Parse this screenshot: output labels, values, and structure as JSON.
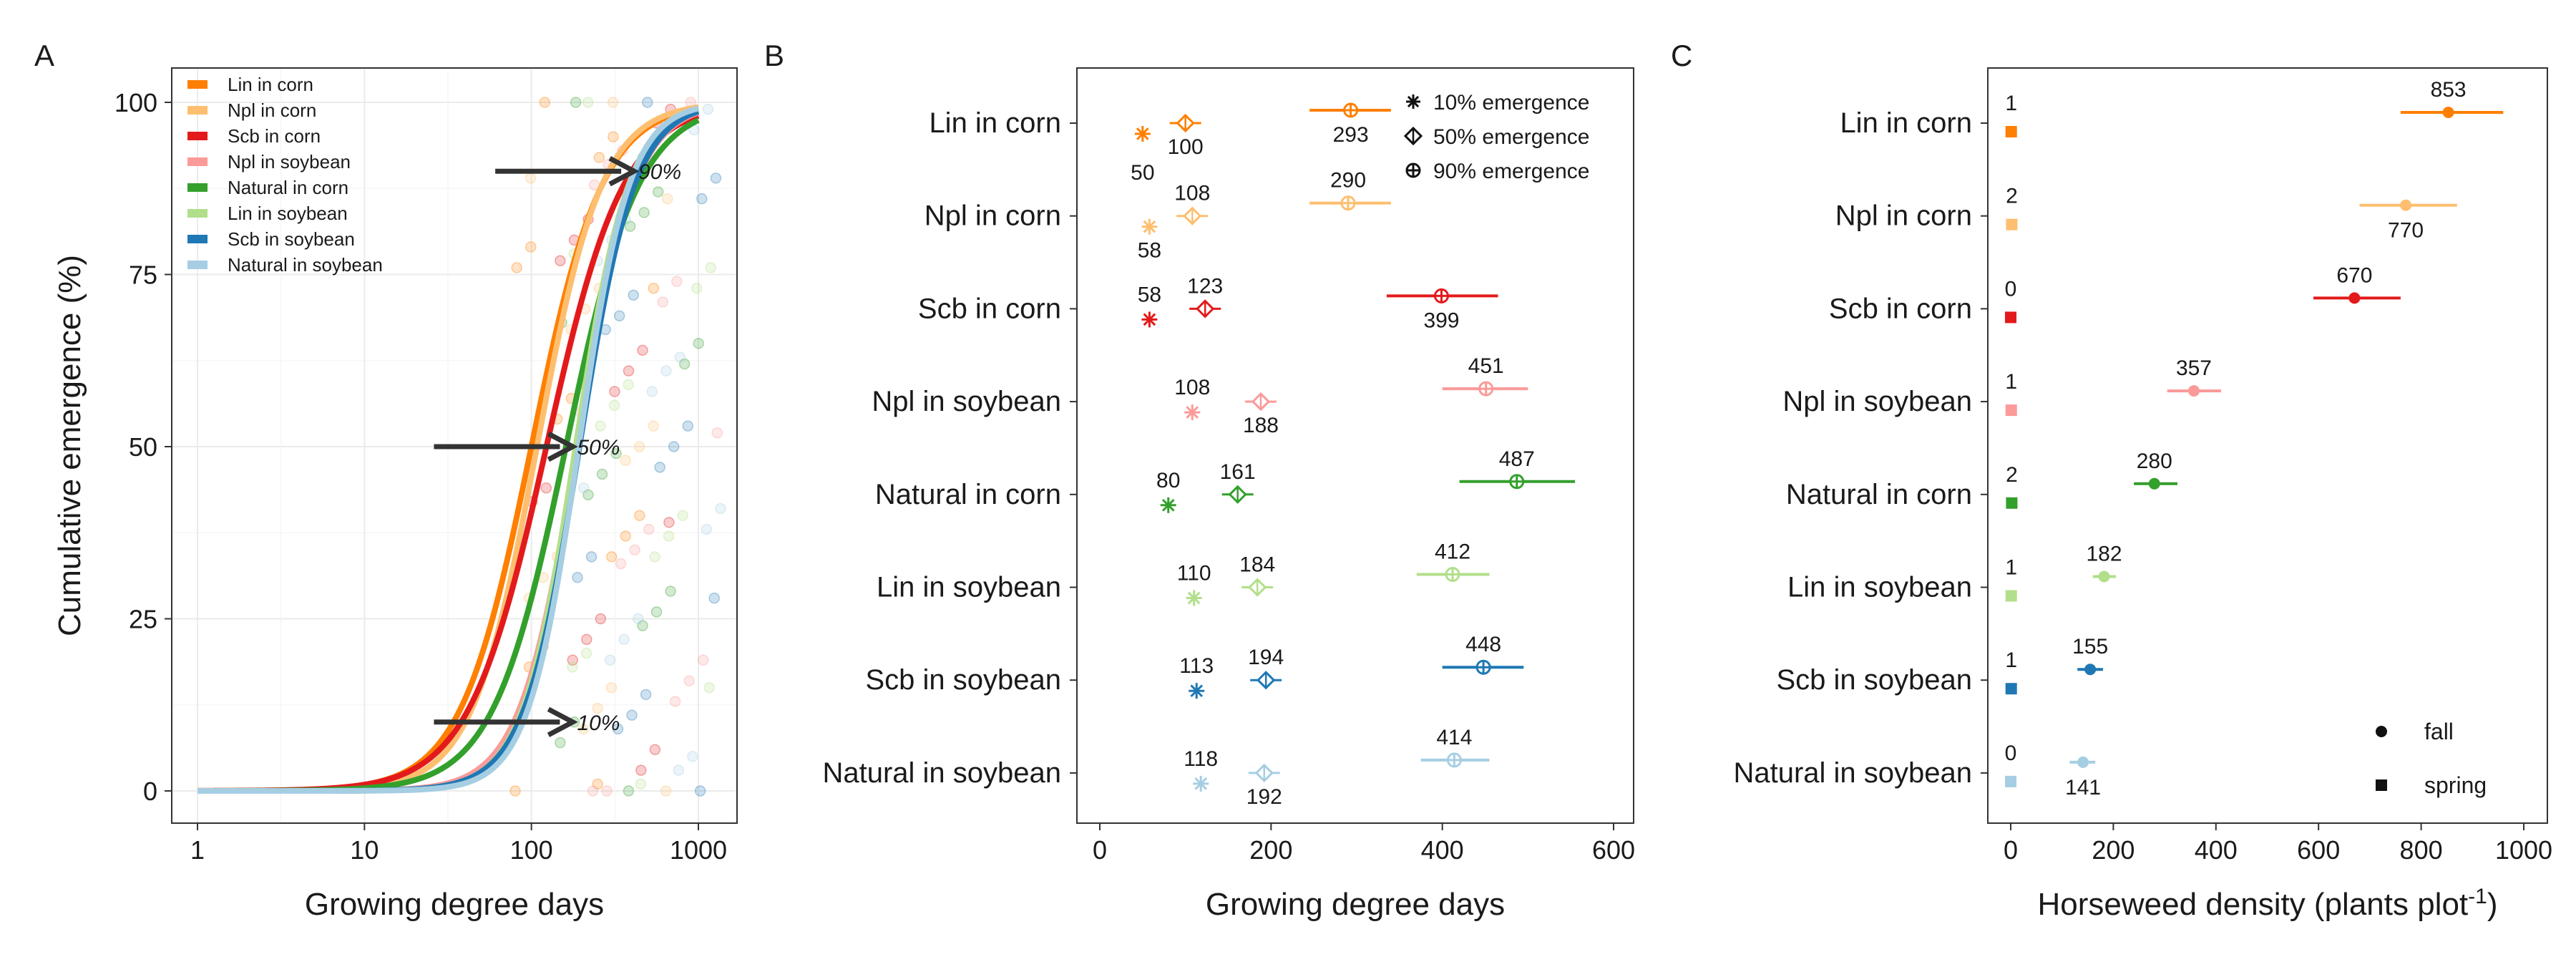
{
  "chart_data": [
    {
      "panel_label": "A",
      "type": "line",
      "xlabel": "Growing degree days",
      "ylabel": "Cumulative emergence (%)",
      "x_scale": "log",
      "xlim": [
        1,
        1000
      ],
      "ylim": [
        0,
        100
      ],
      "x_ticks": [
        "1",
        "10",
        "100",
        "1000"
      ],
      "y_ticks": [
        "0",
        "25",
        "50",
        "75",
        "100"
      ],
      "grid": true,
      "legend_position": "top-left",
      "series": [
        {
          "name": "Lin in corn",
          "color": "#ff7f00",
          "gdd10": 50,
          "gdd50": 100,
          "gdd90": 293
        },
        {
          "name": "Npl in corn",
          "color": "#fdbf6f",
          "gdd10": 58,
          "gdd50": 108,
          "gdd90": 290
        },
        {
          "name": "Scb in corn",
          "color": "#e31a1c",
          "gdd10": 58,
          "gdd50": 123,
          "gdd90": 399
        },
        {
          "name": "Npl in soybean",
          "color": "#fb9a99",
          "gdd10": 108,
          "gdd50": 188,
          "gdd90": 451
        },
        {
          "name": "Natural in corn",
          "color": "#33a02c",
          "gdd10": 80,
          "gdd50": 161,
          "gdd90": 487
        },
        {
          "name": "Lin in soybean",
          "color": "#b2df8a",
          "gdd10": 110,
          "gdd50": 184,
          "gdd90": 412
        },
        {
          "name": "Scb in soybean",
          "color": "#1f78b4",
          "gdd10": 113,
          "gdd50": 194,
          "gdd90": 448
        },
        {
          "name": "Natural in soybean",
          "color": "#a6cee3",
          "gdd10": 118,
          "gdd50": 192,
          "gdd90": 414
        }
      ],
      "annotations": [
        {
          "text": "10%",
          "y": 10,
          "x": 100
        },
        {
          "text": "50%",
          "y": 50,
          "x": 100
        },
        {
          "text": "90%",
          "y": 90,
          "x": 240
        }
      ]
    },
    {
      "panel_label": "B",
      "type": "scatter",
      "xlabel": "Growing degree days",
      "xlim": [
        -25,
        630
      ],
      "x_ticks": [
        0,
        200,
        400,
        600
      ],
      "grid": false,
      "legend_position": "top-right",
      "legend": [
        "10% emergence",
        "50% emergence",
        "90% emergence"
      ],
      "categories": [
        "Lin in corn",
        "Npl in corn",
        "Scb in corn",
        "Npl in soybean",
        "Natural in corn",
        "Lin in soybean",
        "Scb in soybean",
        "Natural in soybean"
      ],
      "e10": [
        50,
        58,
        58,
        108,
        80,
        110,
        113,
        118
      ],
      "e50": [
        100,
        108,
        123,
        188,
        161,
        184,
        194,
        192
      ],
      "e90": [
        293,
        290,
        399,
        451,
        487,
        412,
        448,
        414
      ],
      "e90_err_low": [
        245,
        245,
        335,
        400,
        420,
        370,
        400,
        375
      ],
      "e90_err_high": [
        340,
        340,
        465,
        500,
        555,
        455,
        495,
        455
      ]
    },
    {
      "panel_label": "C",
      "type": "scatter",
      "xlabel_main": "Horseweed density (plants plot",
      "xlabel_sup": "-1",
      "xlabel_close": ")",
      "xlim": [
        -55,
        1000
      ],
      "x_ticks": [
        0,
        200,
        400,
        600,
        800,
        1000
      ],
      "grid": false,
      "legend_position": "bottom-right",
      "legend": [
        "fall",
        "spring"
      ],
      "categories": [
        "Lin in corn",
        "Npl in corn",
        "Scb in corn",
        "Npl in soybean",
        "Natural in corn",
        "Lin in soybean",
        "Scb in soybean",
        "Natural in soybean"
      ],
      "fall": [
        853,
        770,
        670,
        357,
        280,
        182,
        155,
        141
      ],
      "fall_err_low": [
        760,
        680,
        590,
        305,
        240,
        160,
        130,
        115
      ],
      "fall_err_high": [
        960,
        870,
        760,
        410,
        325,
        205,
        180,
        165
      ],
      "spring": [
        1,
        2,
        0,
        1,
        2,
        1,
        1,
        0
      ]
    }
  ]
}
